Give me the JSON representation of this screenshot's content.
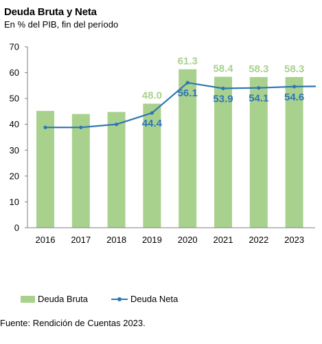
{
  "header": {
    "title": "Deuda Bruta y Neta",
    "subtitle": "En % del PIB, fin del período"
  },
  "chart_data": {
    "type": "bar",
    "categories": [
      "2016",
      "2017",
      "2018",
      "2019",
      "2020",
      "2021",
      "2022",
      "2023"
    ],
    "ylim": [
      0,
      70
    ],
    "yticks": [
      0,
      10,
      20,
      30,
      40,
      50,
      60,
      70
    ],
    "grid": false,
    "legend_position": "bottom",
    "series": [
      {
        "name": "Deuda Bruta",
        "type": "bar",
        "color": "#a9d18e",
        "values": [
          45.2,
          44.0,
          44.8,
          48.0,
          61.3,
          58.4,
          58.3,
          58.3
        ],
        "labels": [
          "",
          "",
          "",
          "48.0",
          "61.3",
          "58.4",
          "58.3",
          "58.3"
        ]
      },
      {
        "name": "Deuda Neta",
        "type": "line",
        "color": "#2e75b6",
        "values": [
          38.8,
          38.8,
          40.0,
          44.4,
          56.1,
          53.9,
          54.1,
          54.6
        ],
        "labels": [
          "",
          "",
          "",
          "44.4",
          "56.1",
          "53.9",
          "54.1",
          "54.6"
        ]
      }
    ]
  },
  "legend": {
    "bruta_label": "Deuda Bruta",
    "neta_label": "Deuda Neta"
  },
  "footer": {
    "source": "Fuente: Rendición de Cuentas 2023."
  }
}
